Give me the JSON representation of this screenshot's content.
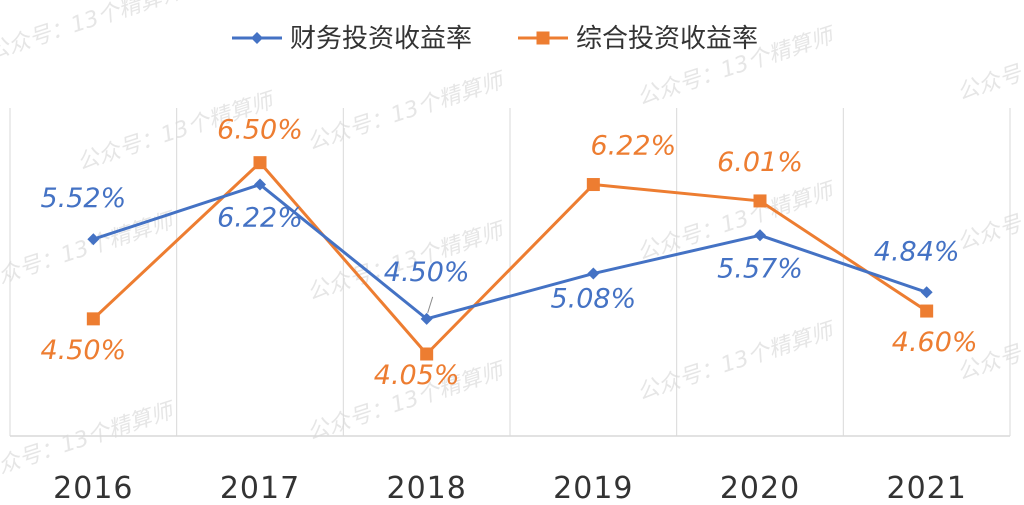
{
  "chart_data": {
    "type": "line",
    "title": "",
    "xlabel": "",
    "ylabel": "",
    "categories": [
      "2016",
      "2017",
      "2018",
      "2019",
      "2020",
      "2021"
    ],
    "series": [
      {
        "name": "财务投资收益率",
        "values": [
          5.52,
          6.22,
          4.5,
          5.08,
          5.57,
          4.84
        ],
        "labels": [
          "5.52%",
          "6.22%",
          "4.50%",
          "5.08%",
          "5.57%",
          "4.84%"
        ],
        "color": "#4472C4",
        "marker": "diamond"
      },
      {
        "name": "综合投资收益率",
        "values": [
          4.5,
          6.5,
          4.05,
          6.22,
          6.01,
          4.6
        ],
        "labels": [
          "4.50%",
          "6.50%",
          "4.05%",
          "6.22%",
          "6.01%",
          "4.60%"
        ],
        "color": "#ED7D31",
        "marker": "square"
      }
    ],
    "ylim": [
      3.0,
      7.2
    ],
    "grid": "vertical",
    "legend_position": "top-center"
  },
  "watermark": "公众号：13个精算师"
}
